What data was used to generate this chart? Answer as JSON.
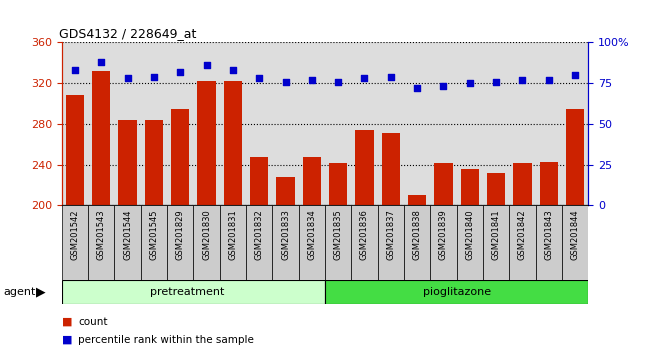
{
  "title": "GDS4132 / 228649_at",
  "samples": [
    "GSM201542",
    "GSM201543",
    "GSM201544",
    "GSM201545",
    "GSM201829",
    "GSM201830",
    "GSM201831",
    "GSM201832",
    "GSM201833",
    "GSM201834",
    "GSM201835",
    "GSM201836",
    "GSM201837",
    "GSM201838",
    "GSM201839",
    "GSM201840",
    "GSM201841",
    "GSM201842",
    "GSM201843",
    "GSM201844"
  ],
  "counts": [
    308,
    332,
    284,
    284,
    295,
    322,
    322,
    247,
    228,
    247,
    242,
    274,
    271,
    210,
    242,
    236,
    232,
    242,
    243,
    295
  ],
  "percentile": [
    83,
    88,
    78,
    79,
    82,
    86,
    83,
    78,
    76,
    77,
    76,
    78,
    79,
    72,
    73,
    75,
    76,
    77,
    77,
    80
  ],
  "ylim_left": [
    200,
    360
  ],
  "ylim_right": [
    0,
    100
  ],
  "yticks_left": [
    200,
    240,
    280,
    320,
    360
  ],
  "yticks_right": [
    0,
    25,
    50,
    75,
    100
  ],
  "bar_color": "#cc2200",
  "dot_color": "#0000cc",
  "pretreatment_color": "#ccffcc",
  "pioglitazone_color": "#44dd44",
  "xticklabel_bg": "#cccccc",
  "n_pretreatment": 10,
  "n_pioglitazone": 10,
  "legend_count_label": "count",
  "legend_percentile_label": "percentile rank within the sample",
  "agent_label": "agent"
}
